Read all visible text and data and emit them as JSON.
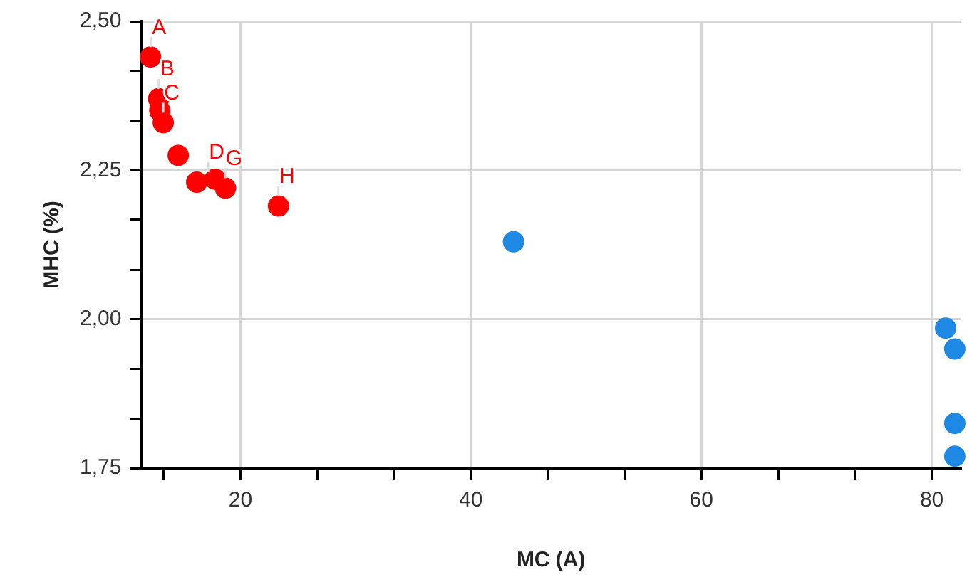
{
  "chart_data": {
    "type": "scatter",
    "xlabel": "MC (A)",
    "ylabel": "MHC (%)",
    "xlim": [
      11.4,
      82.5
    ],
    "ylim": [
      1.75,
      2.5
    ],
    "xticks": [
      {
        "value": 13.33,
        "label": null
      },
      20,
      {
        "value": 26.67,
        "label": null
      },
      {
        "value": 33.33,
        "label": null
      },
      40,
      {
        "value": 46.67,
        "label": null
      },
      {
        "value": 53.33,
        "label": null
      },
      60,
      {
        "value": 66.67,
        "label": null
      },
      {
        "value": 73.33,
        "label": null
      },
      80
    ],
    "yticks": [
      {
        "value": 1.75,
        "label": "1,75"
      },
      {
        "value": 1.833,
        "label": null
      },
      {
        "value": 1.917,
        "label": null
      },
      {
        "value": 2.0,
        "label": "2,00"
      },
      {
        "value": 2.083,
        "label": null
      },
      {
        "value": 2.167,
        "label": null
      },
      {
        "value": 2.25,
        "label": "2,25"
      },
      {
        "value": 2.333,
        "label": null
      },
      {
        "value": 2.417,
        "label": null
      },
      {
        "value": 2.5,
        "label": "2,50"
      }
    ],
    "grid": true,
    "legend": false,
    "marker": "circle",
    "series": [
      {
        "color": "#ff0000",
        "x": [
          12.2,
          12.9,
          13.0,
          13.3,
          14.6,
          16.2,
          17.2,
          17.8,
          18.7,
          23.3
        ],
        "values": [
          2.44,
          2.37,
          2.35,
          2.33,
          2.275,
          2.23,
          null,
          2.235,
          2.22,
          2.19
        ]
      },
      {
        "color": "#1e88e5",
        "x": [
          43.7,
          81.2,
          82.0,
          82.0,
          82.0
        ],
        "values": [
          2.13,
          1.985,
          1.95,
          1.825,
          1.77
        ]
      }
    ],
    "annotations": [
      {
        "text": "A",
        "x": 12.2,
        "y": 2.44
      },
      {
        "text": "B",
        "x": 12.9,
        "y": 2.37
      },
      {
        "text": "C",
        "x": 13.3,
        "y": 2.33
      },
      {
        "text": "D",
        "x": 17.2,
        "y": 2.23
      },
      {
        "text": "G",
        "x": 18.7,
        "y": 2.22
      },
      {
        "text": "H",
        "x": 23.3,
        "y": 2.19
      }
    ]
  }
}
